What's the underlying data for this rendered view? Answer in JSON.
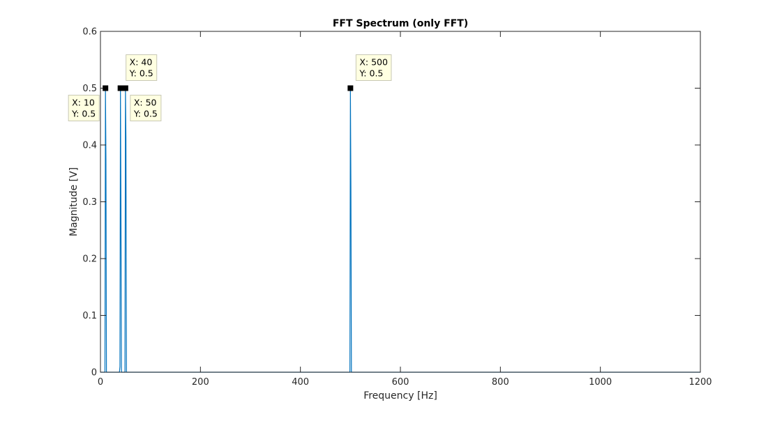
{
  "chart_data": {
    "type": "line",
    "title": "FFT Spectrum (only FFT)",
    "xlabel": "Frequency [Hz]",
    "ylabel": "Magnitude [V]",
    "xlim": [
      0,
      1200
    ],
    "ylim": [
      0,
      0.6
    ],
    "xticks": [
      0,
      200,
      400,
      600,
      800,
      1000,
      1200
    ],
    "xtick_labels": [
      "0",
      "200",
      "400",
      "600",
      "800",
      "1000",
      "1200"
    ],
    "yticks": [
      0,
      0.1,
      0.2,
      0.3,
      0.4,
      0.5,
      0.6
    ],
    "ytick_labels": [
      "0",
      "0.1",
      "0.2",
      "0.3",
      "0.4",
      "0.5",
      "0.6"
    ],
    "grid": false,
    "line_color": "#0072BD",
    "series": [
      {
        "x": [
          0,
          9,
          10,
          11,
          12,
          38,
          39,
          40,
          41,
          42,
          49,
          50,
          51,
          52,
          499,
          500,
          501,
          502,
          1200
        ],
        "y": [
          0,
          0,
          0.5,
          0.375,
          0,
          0,
          0.01,
          0.5,
          0.29,
          0,
          0,
          0.5,
          0.413,
          0,
          0,
          0.5,
          0.326,
          0,
          0
        ]
      }
    ],
    "annotations": [
      {
        "x": 10,
        "y": 0.5,
        "line1": "X: 10",
        "line2": "Y: 0.5"
      },
      {
        "x": 40,
        "y": 0.5,
        "line1": "X: 40",
        "line2": "Y: 0.5"
      },
      {
        "x": 50,
        "y": 0.5,
        "line1": "X: 50",
        "line2": "Y: 0.5"
      },
      {
        "x": 500,
        "y": 0.5,
        "line1": "X: 500",
        "line2": "Y: 0.5"
      }
    ]
  }
}
